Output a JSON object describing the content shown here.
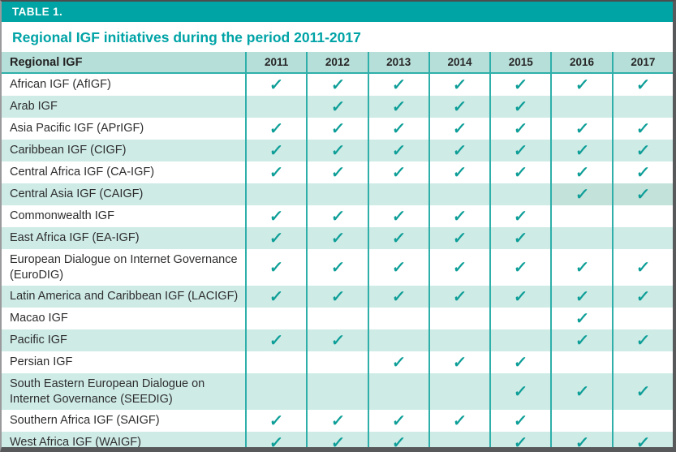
{
  "page": {
    "table_label": "TABLE 1.",
    "title": "Regional IGF initiatives during the period 2011-2017"
  },
  "table": {
    "columns": [
      "Regional IGF",
      "2011",
      "2012",
      "2013",
      "2014",
      "2015",
      "2016",
      "2017"
    ],
    "check_symbol": "✓",
    "rows": [
      {
        "name": "African IGF (AfIGF)",
        "checks": [
          true,
          true,
          true,
          true,
          true,
          true,
          true
        ]
      },
      {
        "name": "Arab IGF",
        "checks": [
          false,
          true,
          true,
          true,
          true,
          false,
          false
        ]
      },
      {
        "name": "Asia Pacific IGF (APrIGF)",
        "checks": [
          true,
          true,
          true,
          true,
          true,
          true,
          true
        ]
      },
      {
        "name": "Caribbean IGF (CIGF)",
        "checks": [
          true,
          true,
          true,
          true,
          true,
          true,
          true
        ]
      },
      {
        "name": "Central Africa IGF (CA-IGF)",
        "checks": [
          true,
          true,
          true,
          true,
          true,
          true,
          true
        ]
      },
      {
        "name": "Central Asia IGF (CAIGF)",
        "checks": [
          false,
          false,
          false,
          false,
          false,
          true,
          true
        ],
        "highlight_cells": [
          5,
          6
        ]
      },
      {
        "name": "Commonwealth IGF",
        "checks": [
          true,
          true,
          true,
          true,
          true,
          false,
          false
        ]
      },
      {
        "name": "East Africa IGF (EA-IGF)",
        "checks": [
          true,
          true,
          true,
          true,
          true,
          false,
          false
        ]
      },
      {
        "name": "European Dialogue on Internet Governance (EuroDIG)",
        "checks": [
          true,
          true,
          true,
          true,
          true,
          true,
          true
        ]
      },
      {
        "name": "Latin America and Caribbean IGF (LACIGF)",
        "checks": [
          true,
          true,
          true,
          true,
          true,
          true,
          true
        ]
      },
      {
        "name": "Macao IGF",
        "checks": [
          false,
          false,
          false,
          false,
          false,
          true,
          false
        ]
      },
      {
        "name": "Pacific IGF",
        "checks": [
          true,
          true,
          false,
          false,
          false,
          true,
          true
        ]
      },
      {
        "name": "Persian IGF",
        "checks": [
          false,
          false,
          true,
          true,
          true,
          false,
          false
        ]
      },
      {
        "name": "South Eastern European Dialogue on Internet Governance (SEEDIG)",
        "checks": [
          false,
          false,
          false,
          false,
          true,
          true,
          true
        ]
      },
      {
        "name": "Southern Africa IGF (SAIGF)",
        "checks": [
          true,
          true,
          true,
          true,
          true,
          false,
          false
        ]
      },
      {
        "name": "West Africa IGF (WAIGF)",
        "checks": [
          true,
          true,
          true,
          false,
          true,
          true,
          true
        ]
      }
    ]
  },
  "colors": {
    "teal_band": "#00A4A4",
    "title_teal": "#00A3A6",
    "teal_border": "#2FAFAA",
    "check": "#0D9E97",
    "row_alt": "#CEEBE6",
    "header_row": "#B7DFD9",
    "highlight_cell": "#C3E2DA",
    "outer_dark": "#58595B"
  }
}
